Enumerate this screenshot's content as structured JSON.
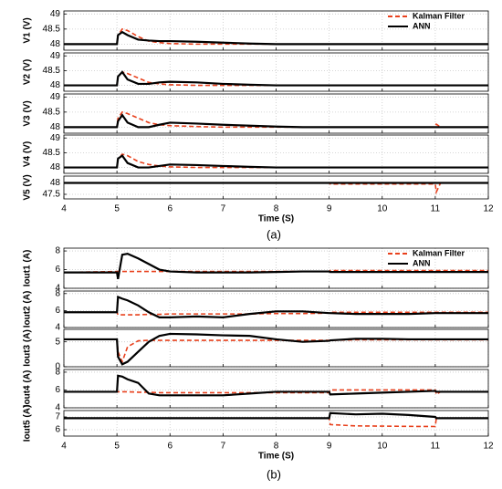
{
  "captions": [
    "(a)",
    "(b)"
  ],
  "chart_data": [
    {
      "type": "line",
      "ylabel": "V1 (V)",
      "x": [
        4,
        5,
        5.02,
        5.1,
        5.2,
        5.4,
        5.6,
        5.8,
        6,
        6.5,
        7,
        7.5,
        8,
        8.5,
        9,
        9.02,
        9.5,
        10,
        10.5,
        11,
        11.02,
        11.1,
        12
      ],
      "xlim": [
        4,
        12
      ],
      "xticks": [
        4,
        5,
        6,
        7,
        8,
        9,
        10,
        11,
        12
      ],
      "ylim": [
        47.8,
        49.1
      ],
      "yticks": [
        48,
        48.5,
        49
      ],
      "grid": true,
      "legend": "upper right",
      "series": [
        {
          "name": "Kalman Filter",
          "color": "#e8401c",
          "linestyle": "dashed",
          "values": [
            48,
            48,
            48.3,
            48.5,
            48.45,
            48.25,
            48.1,
            48.05,
            48.02,
            48,
            48,
            48,
            48,
            48,
            48,
            48,
            48,
            48,
            48,
            48,
            48,
            48,
            48
          ]
        },
        {
          "name": "ANN",
          "color": "#000000",
          "linestyle": "solid",
          "values": [
            48,
            48,
            48.3,
            48.4,
            48.3,
            48.15,
            48.12,
            48.1,
            48.1,
            48.08,
            48.05,
            48.02,
            48,
            48,
            48,
            48,
            48,
            48,
            48,
            48,
            48,
            48,
            48
          ]
        }
      ]
    },
    {
      "type": "line",
      "ylabel": "V2 (V)",
      "x": [
        4,
        5,
        5.02,
        5.1,
        5.2,
        5.4,
        5.6,
        5.8,
        6,
        6.5,
        7,
        7.5,
        8,
        8.5,
        9,
        9.02,
        9.5,
        10,
        10.5,
        11,
        11.02,
        11.1,
        12
      ],
      "xlim": [
        4,
        12
      ],
      "xticks": [
        4,
        5,
        6,
        7,
        8,
        9,
        10,
        11,
        12
      ],
      "ylim": [
        47.8,
        49.1
      ],
      "yticks": [
        48,
        48.5,
        49
      ],
      "grid": true,
      "series": [
        {
          "name": "Kalman Filter",
          "color": "#e8401c",
          "linestyle": "dashed",
          "values": [
            48,
            48,
            48.3,
            48.45,
            48.4,
            48.25,
            48.1,
            48.05,
            48.02,
            48,
            48,
            48,
            48,
            48,
            48,
            48,
            48,
            48,
            48,
            48,
            48,
            48,
            48
          ]
        },
        {
          "name": "ANN",
          "color": "#000000",
          "linestyle": "solid",
          "values": [
            48,
            48,
            48.3,
            48.45,
            48.2,
            48.05,
            48.05,
            48.1,
            48.12,
            48.1,
            48.05,
            48.02,
            48,
            48,
            48,
            48,
            48,
            48,
            48,
            48,
            48,
            48,
            48
          ]
        }
      ]
    },
    {
      "type": "line",
      "ylabel": "V3 (V)",
      "x": [
        4,
        5,
        5.02,
        5.1,
        5.2,
        5.4,
        5.6,
        5.8,
        6,
        6.5,
        7,
        7.5,
        8,
        8.5,
        9,
        9.02,
        9.5,
        10,
        10.5,
        11,
        11.02,
        11.1,
        12
      ],
      "xlim": [
        4,
        12
      ],
      "xticks": [
        4,
        5,
        6,
        7,
        8,
        9,
        10,
        11,
        12
      ],
      "ylim": [
        47.8,
        49.1
      ],
      "yticks": [
        48,
        48.5,
        49
      ],
      "grid": true,
      "series": [
        {
          "name": "Kalman Filter",
          "color": "#e8401c",
          "linestyle": "dashed",
          "values": [
            48,
            48,
            48.3,
            48.5,
            48.45,
            48.3,
            48.15,
            48.08,
            48.05,
            48.02,
            48,
            48,
            48,
            48,
            48,
            48,
            48,
            48,
            48,
            48,
            48.1,
            48,
            48
          ]
        },
        {
          "name": "ANN",
          "color": "#000000",
          "linestyle": "solid",
          "values": [
            48,
            48,
            48.2,
            48.4,
            48.15,
            48,
            48,
            48.08,
            48.15,
            48.12,
            48.08,
            48.05,
            48.02,
            48,
            48,
            48,
            48,
            48,
            48,
            48,
            48,
            48,
            48
          ]
        }
      ]
    },
    {
      "type": "line",
      "ylabel": "V4 (V)",
      "x": [
        4,
        5,
        5.02,
        5.1,
        5.2,
        5.4,
        5.6,
        5.8,
        6,
        6.5,
        7,
        7.5,
        8,
        8.5,
        9,
        9.02,
        9.5,
        10,
        10.5,
        11,
        11.02,
        11.1,
        12
      ],
      "xlim": [
        4,
        12
      ],
      "xticks": [
        4,
        5,
        6,
        7,
        8,
        9,
        10,
        11,
        12
      ],
      "ylim": [
        47.8,
        49.1
      ],
      "yticks": [
        48,
        48.5,
        49
      ],
      "grid": true,
      "series": [
        {
          "name": "Kalman Filter",
          "color": "#e8401c",
          "linestyle": "dashed",
          "values": [
            48,
            48,
            48.3,
            48.45,
            48.4,
            48.2,
            48.1,
            48.05,
            48.02,
            48,
            48,
            48,
            48,
            48,
            48,
            48,
            48,
            48,
            48,
            48,
            48,
            48,
            48
          ]
        },
        {
          "name": "ANN",
          "color": "#000000",
          "linestyle": "solid",
          "values": [
            48,
            48,
            48.3,
            48.4,
            48.15,
            48,
            48,
            48.05,
            48.1,
            48.08,
            48.05,
            48.02,
            48,
            48,
            48,
            48,
            48,
            48,
            48,
            48,
            48,
            48,
            48
          ]
        }
      ]
    },
    {
      "type": "line",
      "ylabel": "V5 (V)",
      "xlabel": "Time (S)",
      "x": [
        4,
        5,
        5.02,
        5.1,
        5.2,
        5.4,
        5.6,
        5.8,
        6,
        6.5,
        7,
        7.5,
        8,
        8.5,
        9,
        9.02,
        9.5,
        10,
        10.5,
        11,
        11.02,
        11.1,
        12
      ],
      "xlim": [
        4,
        12
      ],
      "xticks": [
        4,
        5,
        6,
        7,
        8,
        9,
        10,
        11,
        12
      ],
      "ylim": [
        47.3,
        48.3
      ],
      "yticks": [
        47.5,
        48
      ],
      "grid": true,
      "series": [
        {
          "name": "Kalman Filter",
          "color": "#e8401c",
          "linestyle": "dashed",
          "values": [
            48,
            48,
            48,
            48,
            48,
            48,
            48,
            48,
            48,
            48,
            48,
            48,
            48,
            48,
            48,
            47.95,
            47.95,
            47.95,
            47.95,
            47.95,
            47.6,
            48,
            48
          ]
        },
        {
          "name": "ANN",
          "color": "#000000",
          "linestyle": "solid",
          "values": [
            48,
            48,
            48,
            48,
            48,
            48,
            48,
            48,
            48,
            48,
            48,
            48,
            48,
            48,
            48,
            48,
            48,
            48,
            48,
            48,
            48,
            48,
            48
          ]
        }
      ]
    },
    {
      "type": "line",
      "ylabel": "Iout1 (A)",
      "x": [
        4,
        5,
        5.02,
        5.1,
        5.2,
        5.4,
        5.6,
        5.8,
        6,
        6.5,
        7,
        7.5,
        8,
        8.5,
        9,
        9.02,
        9.5,
        10,
        10.5,
        11,
        11.02,
        11.1,
        12
      ],
      "xlim": [
        4,
        12
      ],
      "xticks": [
        4,
        5,
        6,
        7,
        8,
        9,
        10,
        11,
        12
      ],
      "ylim": [
        4,
        8.3
      ],
      "yticks": [
        4,
        6,
        8
      ],
      "grid": true,
      "legend": "upper right",
      "series": [
        {
          "name": "Kalman Filter",
          "color": "#e8401c",
          "linestyle": "dashed",
          "values": [
            5.7,
            5.8,
            5.8,
            5.8,
            5.8,
            5.8,
            5.8,
            5.8,
            5.8,
            5.8,
            5.8,
            5.8,
            5.8,
            5.8,
            5.8,
            5.9,
            5.9,
            5.9,
            5.9,
            5.9,
            5.9,
            5.9,
            5.9
          ]
        },
        {
          "name": "ANN",
          "color": "#000000",
          "linestyle": "solid",
          "values": [
            5.7,
            5.7,
            5,
            7.6,
            7.7,
            7.2,
            6.6,
            6,
            5.8,
            5.7,
            5.7,
            5.7,
            5.75,
            5.8,
            5.8,
            5.75,
            5.75,
            5.75,
            5.75,
            5.75,
            5.75,
            5.75,
            5.75
          ]
        }
      ]
    },
    {
      "type": "line",
      "ylabel": "Iout2 (A)",
      "x": [
        4,
        5,
        5.02,
        5.1,
        5.2,
        5.4,
        5.6,
        5.8,
        6,
        6.5,
        7,
        7.5,
        8,
        8.5,
        9,
        9.02,
        9.5,
        10,
        10.5,
        11,
        11.02,
        11.1,
        12
      ],
      "xlim": [
        4,
        12
      ],
      "xticks": [
        4,
        5,
        6,
        7,
        8,
        9,
        10,
        11,
        12
      ],
      "ylim": [
        4,
        8.3
      ],
      "yticks": [
        4,
        6,
        8
      ],
      "grid": true,
      "series": [
        {
          "name": "Kalman Filter",
          "color": "#e8401c",
          "linestyle": "dashed",
          "values": [
            5.8,
            5.8,
            5.5,
            5.5,
            5.5,
            5.5,
            5.55,
            5.55,
            5.6,
            5.6,
            5.6,
            5.6,
            5.65,
            5.65,
            5.7,
            5.8,
            5.8,
            5.8,
            5.8,
            5.8,
            5.8,
            5.8,
            5.8
          ]
        },
        {
          "name": "ANN",
          "color": "#000000",
          "linestyle": "solid",
          "values": [
            5.8,
            5.8,
            7.6,
            7.4,
            7.2,
            6.6,
            5.8,
            5.2,
            5.2,
            5.3,
            5.2,
            5.6,
            5.9,
            5.9,
            5.7,
            5.7,
            5.6,
            5.6,
            5.6,
            5.7,
            5.7,
            5.7,
            5.7
          ]
        }
      ]
    },
    {
      "type": "line",
      "ylabel": "Iout3 (A)",
      "x": [
        4,
        5,
        5.02,
        5.1,
        5.2,
        5.4,
        5.6,
        5.8,
        6,
        6.5,
        7,
        7.5,
        8,
        8.5,
        9,
        9.02,
        9.5,
        10,
        10.5,
        11,
        11.02,
        11.1,
        12
      ],
      "xlim": [
        4,
        12
      ],
      "xticks": [
        4,
        5,
        6,
        7,
        8,
        9,
        10,
        11,
        12
      ],
      "ylim": [
        0,
        7.5
      ],
      "yticks": [
        0,
        5
      ],
      "grid": true,
      "series": [
        {
          "name": "Kalman Filter",
          "color": "#e8401c",
          "linestyle": "dashed",
          "values": [
            5.5,
            5.5,
            3,
            1,
            4,
            5.2,
            5.3,
            5.3,
            5.3,
            5.3,
            5.3,
            5.3,
            5.3,
            5.3,
            5.3,
            5.3,
            5.4,
            5.4,
            5.4,
            5.4,
            5.4,
            5.4,
            5.4
          ]
        },
        {
          "name": "ANN",
          "color": "#000000",
          "linestyle": "solid",
          "values": [
            5.5,
            5.5,
            2,
            0.5,
            1,
            3,
            5,
            6.2,
            6.6,
            6.5,
            6.3,
            6.2,
            5.5,
            5,
            5.2,
            5.3,
            5.6,
            5.6,
            5.5,
            5.5,
            5.5,
            5.5,
            5.5
          ]
        }
      ]
    },
    {
      "type": "line",
      "ylabel": "Iout4 (A)",
      "x": [
        4,
        5,
        5.02,
        5.1,
        5.2,
        5.4,
        5.6,
        5.8,
        6,
        6.5,
        7,
        7.5,
        8,
        8.5,
        9,
        9.02,
        9.5,
        10,
        10.5,
        11,
        11.02,
        11.1,
        12
      ],
      "xlim": [
        4,
        12
      ],
      "xticks": [
        4,
        5,
        6,
        7,
        8,
        9,
        10,
        11,
        12
      ],
      "ylim": [
        4,
        8.3
      ],
      "yticks": [
        4,
        6,
        8
      ],
      "grid": true,
      "series": [
        {
          "name": "Kalman Filter",
          "color": "#e8401c",
          "linestyle": "dashed",
          "values": [
            5.8,
            5.8,
            5.8,
            5.8,
            5.8,
            5.75,
            5.75,
            5.7,
            5.7,
            5.7,
            5.7,
            5.7,
            5.7,
            5.7,
            5.7,
            6,
            6,
            6,
            6,
            6,
            5.5,
            5.8,
            5.8
          ]
        },
        {
          "name": "ANN",
          "color": "#000000",
          "linestyle": "solid",
          "values": [
            5.8,
            5.8,
            7.6,
            7.5,
            7.2,
            6.8,
            5.6,
            5.4,
            5.4,
            5.4,
            5.4,
            5.6,
            5.8,
            5.8,
            5.8,
            5.5,
            5.6,
            5.7,
            5.8,
            5.9,
            5.8,
            5.8,
            5.8
          ]
        }
      ]
    },
    {
      "type": "line",
      "ylabel": "Iout5 (A)",
      "xlabel": "Time (S)",
      "x": [
        4,
        5,
        5.02,
        5.1,
        5.2,
        5.4,
        5.6,
        5.8,
        6,
        6.5,
        7,
        7.5,
        8,
        8.5,
        9,
        9.02,
        9.5,
        10,
        10.5,
        11,
        11.02,
        11.1,
        12
      ],
      "xlim": [
        4,
        12
      ],
      "xticks": [
        4,
        5,
        6,
        7,
        8,
        9,
        10,
        11,
        12
      ],
      "ylim": [
        5.5,
        7.5
      ],
      "yticks": [
        6,
        7
      ],
      "grid": true,
      "series": [
        {
          "name": "Kalman Filter",
          "color": "#e8401c",
          "linestyle": "dashed",
          "values": [
            6.9,
            6.9,
            6.9,
            6.9,
            6.9,
            6.9,
            6.9,
            6.9,
            6.9,
            6.9,
            6.9,
            6.9,
            6.9,
            6.9,
            6.9,
            6.4,
            6.3,
            6.28,
            6.26,
            6.25,
            6.9,
            6.9,
            6.9
          ]
        },
        {
          "name": "ANN",
          "color": "#000000",
          "linestyle": "solid",
          "values": [
            6.9,
            6.9,
            6.9,
            6.9,
            6.9,
            6.9,
            6.9,
            6.9,
            6.9,
            6.9,
            6.9,
            6.9,
            6.9,
            6.9,
            6.9,
            7.3,
            7.2,
            7.25,
            7.15,
            7,
            6.9,
            6.9,
            6.9
          ]
        }
      ]
    }
  ]
}
